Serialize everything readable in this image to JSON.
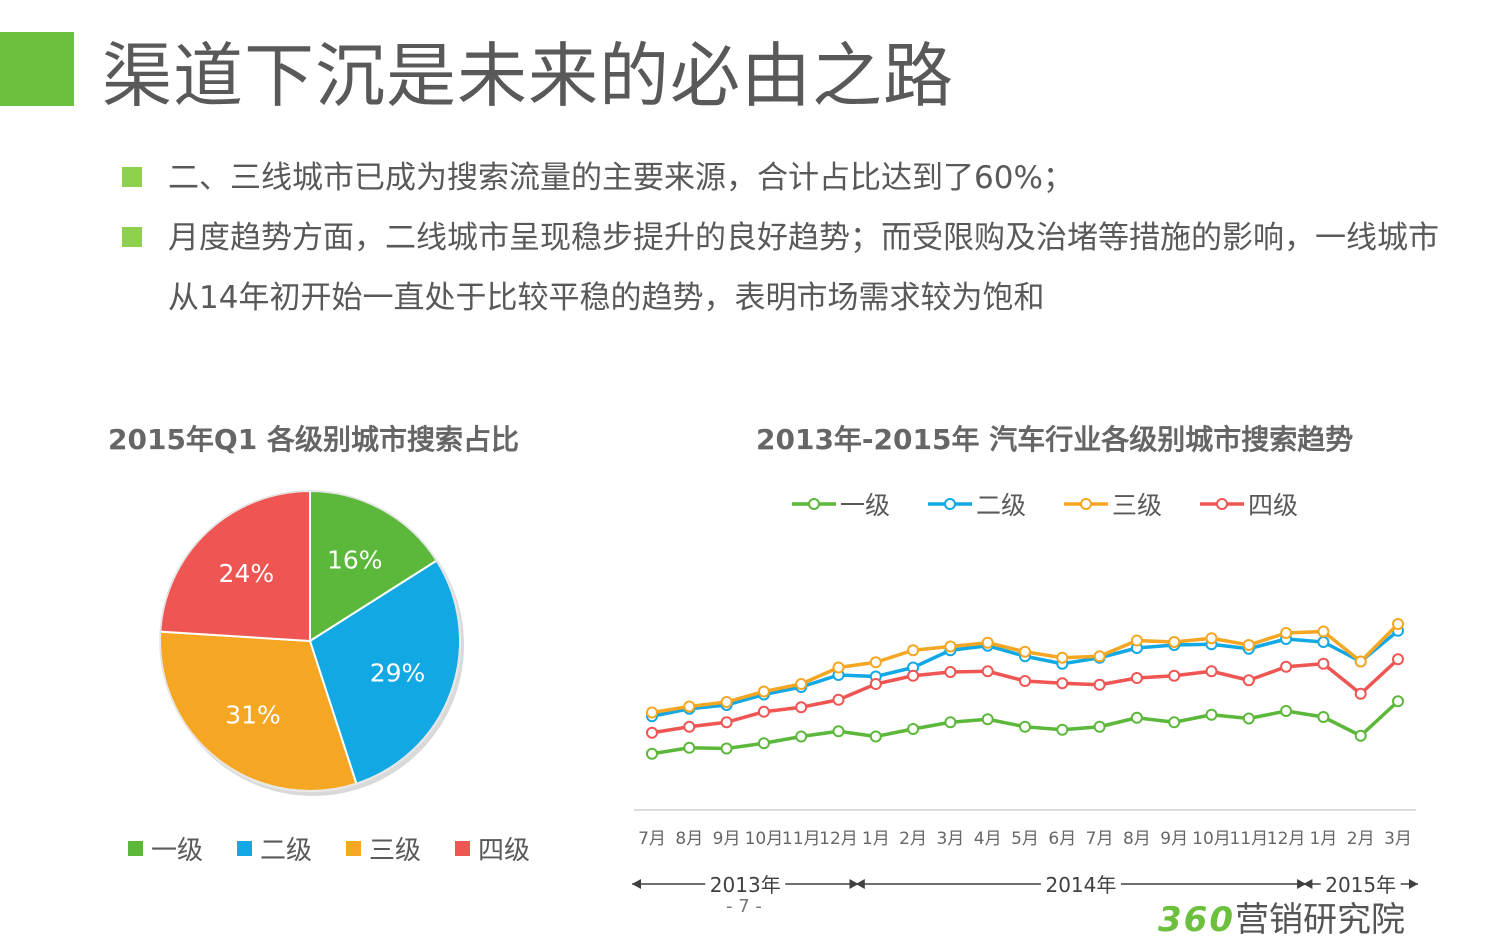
{
  "slide": {
    "title": "渠道下沉是未来的必由之路",
    "bullets": [
      "二、三线城市已成为搜索流量的主要来源，合计占比达到了60%；",
      "月度趋势方面，二线城市呈现稳步提升的良好趋势；而受限购及治堵等措施的影响，一线城市从14年初开始一直处于比较平稳的趋势，表明市场需求较为饱和"
    ],
    "page_number": "- 7 -",
    "brand_number": "360",
    "brand_text": "营销研究院"
  },
  "colors": {
    "accent": "#6cc03e",
    "tier1": "#5cb83a",
    "tier2": "#12a8e3",
    "tier3": "#f5a623",
    "tier4": "#ef5552"
  },
  "chart_data": [
    {
      "type": "pie",
      "title": "2015年Q1 各级别城市搜索占比",
      "labels": [
        "一级",
        "二级",
        "三级",
        "四级"
      ],
      "values": [
        16,
        29,
        31,
        24
      ],
      "value_labels": [
        "16%",
        "29%",
        "31%",
        "24%"
      ],
      "legend": "bottom"
    },
    {
      "type": "line",
      "title": "2013年-2015年 汽车行业各级别城市搜索趋势",
      "categories": [
        "7月",
        "8月",
        "9月",
        "10月",
        "11月",
        "12月",
        "1月",
        "2月",
        "3月",
        "4月",
        "5月",
        "6月",
        "7月",
        "8月",
        "9月",
        "10月",
        "11月",
        "12月",
        "1月",
        "2月",
        "3月"
      ],
      "year_groups": [
        {
          "label": "2013年",
          "start": 0,
          "end": 5
        },
        {
          "label": "2014年",
          "start": 6,
          "end": 17
        },
        {
          "label": "2015年",
          "start": 18,
          "end": 20
        }
      ],
      "series": [
        {
          "name": "一级",
          "values": [
            57,
            65,
            64,
            71,
            80,
            87,
            80,
            90,
            99,
            103,
            93,
            89,
            93,
            105,
            99,
            109,
            104,
            114,
            106,
            81,
            127
          ]
        },
        {
          "name": "二级",
          "values": [
            107,
            117,
            122,
            136,
            146,
            162,
            160,
            172,
            195,
            201,
            187,
            177,
            185,
            198,
            202,
            203,
            197,
            210,
            206,
            180,
            221
          ]
        },
        {
          "name": "三级",
          "values": [
            112,
            120,
            126,
            140,
            150,
            172,
            179,
            195,
            200,
            205,
            193,
            185,
            187,
            208,
            206,
            211,
            202,
            218,
            220,
            180,
            230
          ]
        },
        {
          "name": "四级",
          "values": [
            85,
            93,
            99,
            113,
            119,
            129,
            150,
            161,
            166,
            167,
            154,
            151,
            149,
            158,
            161,
            167,
            155,
            173,
            177,
            137,
            183
          ]
        }
      ],
      "legend": "top",
      "grid": false
    }
  ]
}
